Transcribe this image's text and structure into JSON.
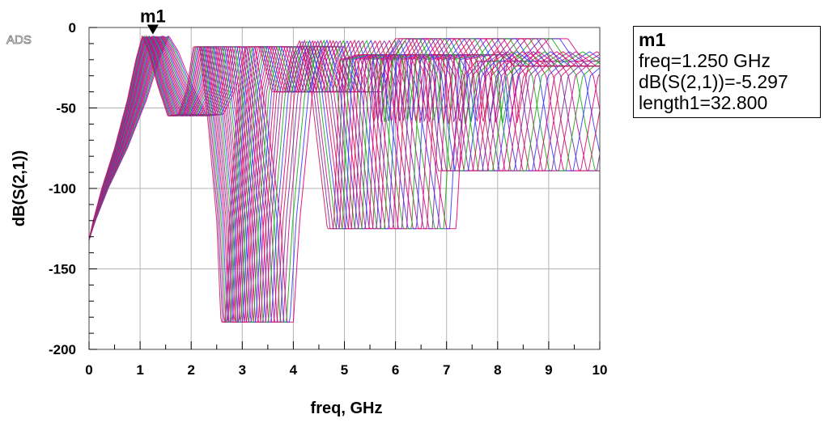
{
  "chart_data": {
    "type": "line",
    "logo": "ADS",
    "xlabel": "freq, GHz",
    "ylabel": "dB(S(2,1))",
    "xlim": [
      0,
      10
    ],
    "ylim": [
      -200,
      0
    ],
    "x_ticks": [
      "0",
      "1",
      "2",
      "3",
      "4",
      "5",
      "6",
      "7",
      "8",
      "9",
      "10"
    ],
    "y_ticks": [
      "0",
      "-50",
      "-100",
      "-150",
      "-200"
    ],
    "x_minor_step": 0.5,
    "y_minor_step": 10,
    "grid": true,
    "sweep_parameter": "length1",
    "num_traces": 30,
    "trace_colors": [
      "#e0007a",
      "#3a3aff",
      "#1aa81a",
      "#c0148c",
      "#7a2aa0",
      "#d4145a"
    ],
    "nominal_response": {
      "x": [
        0,
        0.1,
        0.3,
        0.6,
        0.9,
        1.1,
        1.25,
        1.4,
        1.6,
        1.85,
        2.1,
        2.3,
        2.45,
        2.6,
        2.8,
        3.0,
        3.1,
        3.2,
        3.3,
        3.5,
        3.7,
        4.0,
        4.3,
        4.6,
        4.75,
        4.95,
        5.2,
        5.4,
        5.6,
        5.75,
        5.9,
        6.3,
        6.6,
        6.7,
        6.9,
        7.2,
        7.5,
        7.9,
        8.05,
        8.2,
        8.5,
        8.8,
        9.1,
        9.3,
        9.6,
        10.0
      ],
      "y": [
        -132,
        -120,
        -100,
        -75,
        -45,
        -20,
        -5.297,
        -15,
        -35,
        -55,
        -54,
        -38,
        -12,
        -12,
        -60,
        -120,
        -183,
        -183,
        -120,
        -40,
        -12,
        -12,
        -40,
        -40,
        -20,
        -8,
        -35,
        -80,
        -125,
        -125,
        -20,
        -17,
        -17,
        -60,
        -20,
        -7,
        -7,
        -30,
        -62,
        -89,
        -89,
        -30,
        -21,
        -21,
        -15,
        -24
      ]
    },
    "marker": {
      "name": "m1",
      "x": 1.25,
      "y": -5.297,
      "readout": [
        "m1",
        "freq=1.250 GHz",
        "dB(S(2,1))=-5.297",
        "length1=32.800"
      ]
    }
  }
}
